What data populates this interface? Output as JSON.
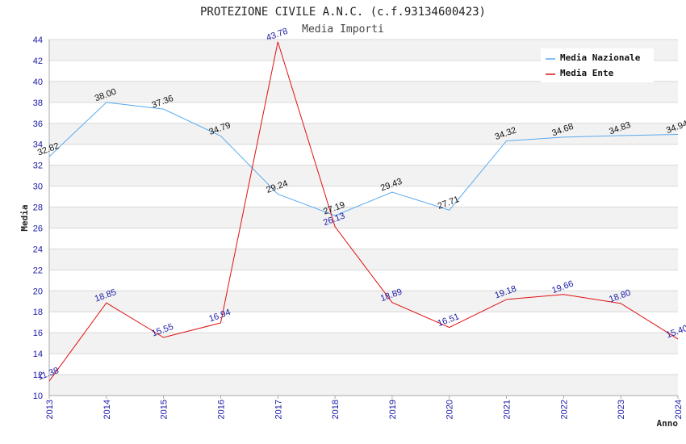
{
  "chart_data": {
    "type": "line",
    "title": "PROTEZIONE CIVILE A.N.C. (c.f.93134600423)",
    "subtitle": "Media Importi",
    "xlabel": "Anno",
    "ylabel": "Media",
    "ylim": [
      10,
      44
    ],
    "ytick_step": 2,
    "grid": true,
    "legend_position": "top-right",
    "x": [
      "2013",
      "2014",
      "2015",
      "2016",
      "2017",
      "2018",
      "2019",
      "2020",
      "2021",
      "2022",
      "2023",
      "2024"
    ],
    "series": [
      {
        "name": "Media Nazionale",
        "color": "#5aaaee",
        "label_color": "#111111",
        "values": [
          32.82,
          38.0,
          37.36,
          34.79,
          29.24,
          27.19,
          29.43,
          27.71,
          34.32,
          34.68,
          34.83,
          34.94
        ],
        "labels": [
          "32.82",
          "38.00",
          "37.36",
          "34.79",
          "29.24",
          "27.19",
          "29.43",
          "27.71",
          "34.32",
          "34.68",
          "34.83",
          "34.94"
        ]
      },
      {
        "name": "Media Ente",
        "color": "#e01010",
        "label_color": "#1a1aa6",
        "values": [
          11.38,
          18.85,
          15.55,
          16.94,
          43.78,
          26.13,
          18.89,
          16.51,
          19.18,
          19.66,
          18.8,
          15.4
        ],
        "labels": [
          "11.38",
          "18.85",
          "15.55",
          "16.94",
          "43.78",
          "26.13",
          "18.89",
          "16.51",
          "19.18",
          "19.66",
          "18.80",
          "15.40"
        ]
      }
    ]
  }
}
